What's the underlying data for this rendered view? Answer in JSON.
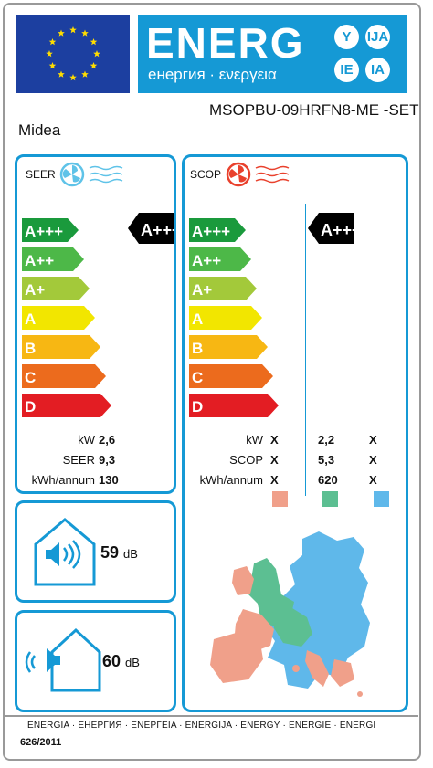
{
  "header": {
    "title": "ENERG",
    "subtitle": "енергия · ενεργεια",
    "badges": [
      "Y",
      "IJA",
      "IE",
      "IA"
    ],
    "supplier": "Midea",
    "model": "MSOPBU-09HRFN8-ME -SET"
  },
  "classes": [
    "A+++",
    "A++",
    "A+",
    "A",
    "B",
    "C",
    "D"
  ],
  "class_colors": [
    "#1a9a3c",
    "#4db848",
    "#a3c93a",
    "#f2e600",
    "#f7b713",
    "#ec6b1d",
    "#e31d23"
  ],
  "cooling": {
    "label": "SEER",
    "rating": "A+++",
    "rows": [
      {
        "label": "kW",
        "value": "2,6"
      },
      {
        "label": "SEER",
        "value": "9,3"
      },
      {
        "label": "kWh/annum",
        "value": "130"
      }
    ]
  },
  "heating": {
    "label": "SCOP",
    "rating": "A+++",
    "rows": [
      {
        "label": "kW",
        "values": [
          "X",
          "2,2",
          "X"
        ]
      },
      {
        "label": "SCOP",
        "values": [
          "X",
          "5,3",
          "X"
        ]
      },
      {
        "label": "kWh/annum",
        "values": [
          "X",
          "620",
          "X"
        ]
      }
    ],
    "zone_colors": [
      "#f0a08a",
      "#5cbf92",
      "#5fb8ea"
    ]
  },
  "noise": {
    "indoor": {
      "value": "59",
      "unit": "dB"
    },
    "outdoor": {
      "value": "60",
      "unit": "dB"
    }
  },
  "footer": {
    "languages": "ENERGIA · ЕНЕРГИЯ · ΕΝΕΡΓΕΙΑ · ENERGIJA · ENERGY · ENERGIE · ENERGI",
    "regulation": "626/2011"
  }
}
